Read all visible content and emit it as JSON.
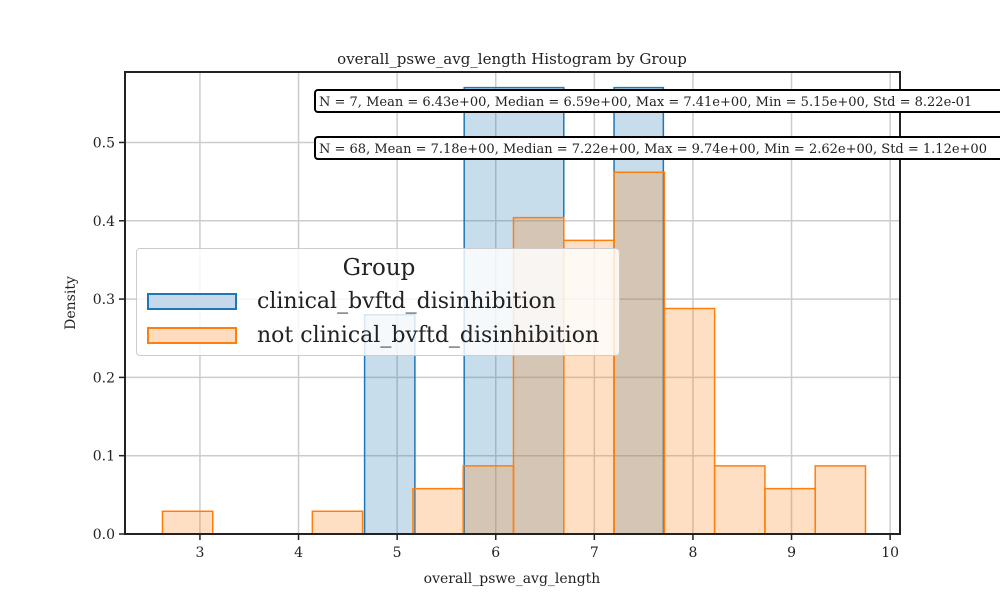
{
  "chart_data": {
    "type": "histogram",
    "title": "overall_pswe_avg_length Histogram by Group",
    "xlabel": "overall_pswe_avg_length",
    "ylabel": "Density",
    "xlim": [
      2.24,
      10.1
    ],
    "ylim": [
      0,
      0.59
    ],
    "xticks": [
      "3",
      "4",
      "5",
      "6",
      "7",
      "8",
      "9",
      "10"
    ],
    "yticks": [
      "0.0",
      "0.1",
      "0.2",
      "0.3",
      "0.4",
      "0.5"
    ],
    "grid": true,
    "legend": {
      "title": "Group",
      "placement": "center-left"
    },
    "series": [
      {
        "name": "clinical_bvftd_disinhibition",
        "color": "#1f77b4",
        "fill": "#c5d9ea",
        "bins": [
          {
            "x0": 4.67,
            "x1": 5.18,
            "y": 0.28
          },
          {
            "x0": 5.68,
            "x1": 6.69,
            "y": 0.57
          },
          {
            "x0": 7.2,
            "x1": 7.7,
            "y": 0.57
          }
        ],
        "stats": "N = 7, Mean = 6.43e+00, Median = 6.59e+00, Max = 7.41e+00, Min = 5.15e+00, Std = 8.22e-01"
      },
      {
        "name": "not clinical_bvftd_disinhibition",
        "color": "#ff7f0e",
        "fill": "#ffdcbf",
        "bins": [
          {
            "x0": 2.62,
            "x1": 3.13,
            "y": 0.029
          },
          {
            "x0": 4.14,
            "x1": 4.65,
            "y": 0.029
          },
          {
            "x0": 4.65,
            "x1": 5.16,
            "y": 0.0
          },
          {
            "x0": 5.16,
            "x1": 5.67,
            "y": 0.058
          },
          {
            "x0": 5.67,
            "x1": 6.18,
            "y": 0.087
          },
          {
            "x0": 6.18,
            "x1": 6.69,
            "y": 0.404
          },
          {
            "x0": 6.69,
            "x1": 7.2,
            "y": 0.375
          },
          {
            "x0": 7.2,
            "x1": 7.71,
            "y": 0.462
          },
          {
            "x0": 7.71,
            "x1": 8.22,
            "y": 0.288
          },
          {
            "x0": 8.22,
            "x1": 8.73,
            "y": 0.087
          },
          {
            "x0": 8.73,
            "x1": 9.24,
            "y": 0.058
          },
          {
            "x0": 9.24,
            "x1": 9.75,
            "y": 0.087
          }
        ],
        "stats": "N = 68, Mean = 7.18e+00, Median = 7.22e+00, Max = 9.74e+00, Min = 2.62e+00, Std = 1.12e+00"
      }
    ]
  }
}
